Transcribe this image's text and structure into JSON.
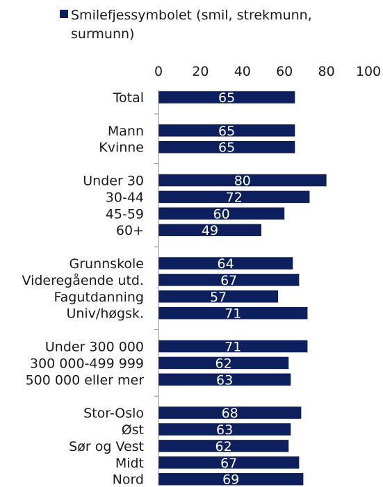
{
  "chart_data": {
    "type": "bar",
    "orientation": "horizontal",
    "legend": {
      "line1": "Smilefjessymbolet (smil, strekmunn,",
      "line2": "surmunn)",
      "placement": "top-left"
    },
    "bar_color": "#0d1f5c",
    "xlim": [
      0,
      100
    ],
    "xticks": [
      "0",
      "20",
      "40",
      "60",
      "80",
      "100"
    ],
    "xtick_values": [
      0,
      20,
      40,
      60,
      80,
      100
    ],
    "grid": false,
    "groups": [
      {
        "items": [
          {
            "label": "Total",
            "value": 65
          }
        ]
      },
      {
        "items": [
          {
            "label": "Mann",
            "value": 65
          },
          {
            "label": "Kvinne",
            "value": 65
          }
        ]
      },
      {
        "items": [
          {
            "label": "Under 30",
            "value": 80
          },
          {
            "label": "30-44",
            "value": 72
          },
          {
            "label": "45-59",
            "value": 60
          },
          {
            "label": "60+",
            "value": 49
          }
        ]
      },
      {
        "items": [
          {
            "label": "Grunnskole",
            "value": 64
          },
          {
            "label": "Videregående utd.",
            "value": 67
          },
          {
            "label": "Fagutdanning",
            "value": 57
          },
          {
            "label": "Univ/høgsk.",
            "value": 71
          }
        ]
      },
      {
        "items": [
          {
            "label": "Under 300 000",
            "value": 71
          },
          {
            "label": "300 000-499 999",
            "value": 62
          },
          {
            "label": "500 000 eller mer",
            "value": 63
          }
        ]
      },
      {
        "items": [
          {
            "label": "Stor-Oslo",
            "value": 68
          },
          {
            "label": "Øst",
            "value": 63
          },
          {
            "label": "Sør og Vest",
            "value": 62
          },
          {
            "label": "Midt",
            "value": 67
          },
          {
            "label": "Nord",
            "value": 69
          }
        ]
      }
    ]
  }
}
